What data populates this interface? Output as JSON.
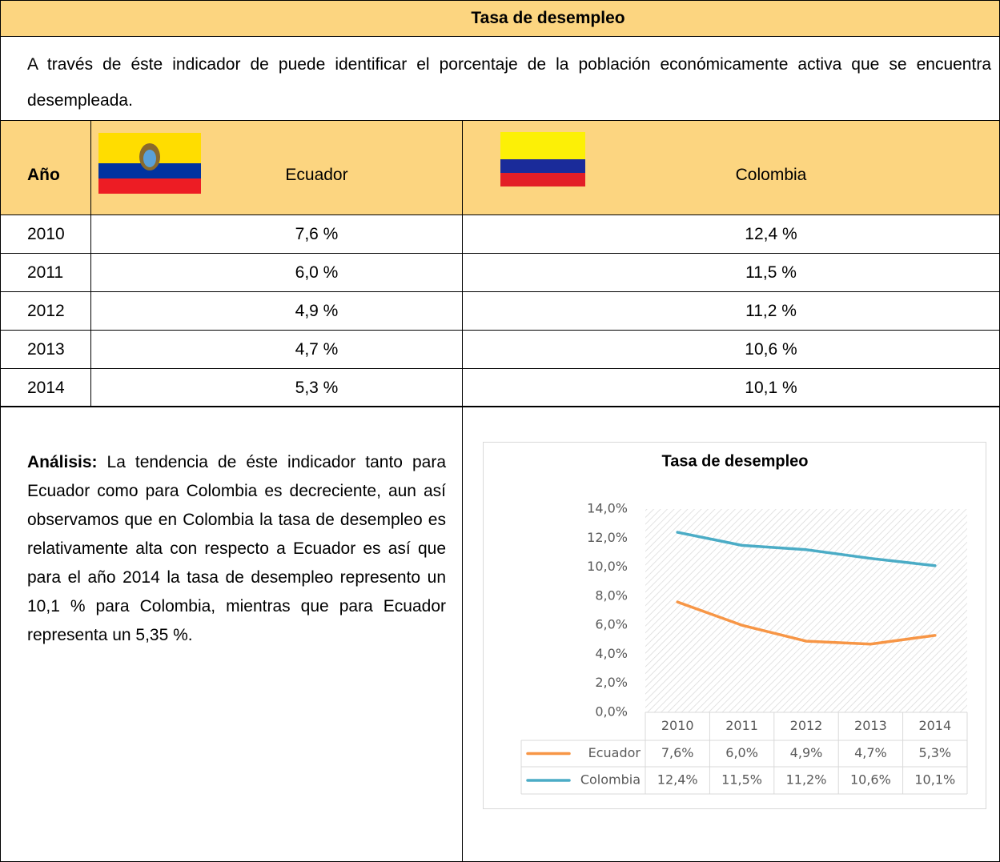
{
  "header": {
    "title": "Tasa de desempleo"
  },
  "description": "A través de éste indicador de puede identificar el porcentaje de la población económicamente activa que se encuentra desempleada.",
  "table": {
    "columns": [
      "Año",
      "Ecuador",
      "Colombia"
    ],
    "rows": [
      [
        "2010",
        "7,6 %",
        "12,4 %"
      ],
      [
        "2011",
        "6,0 %",
        "11,5 %"
      ],
      [
        "2012",
        "4,9 %",
        "11,2 %"
      ],
      [
        "2013",
        "4,7 %",
        "10,6 %"
      ],
      [
        "2014",
        "5,3 %",
        "10,1 %"
      ]
    ]
  },
  "analysis": {
    "label": "Análisis:",
    "text": "La tendencia de éste indicador tanto para Ecuador como para Colombia es decreciente, aun así observamos que en Colombia la tasa de desempleo es relativamente alta con respecto a Ecuador es así que para el año 2014 la tasa de desempleo represento un 10,1 % para Colombia, mientras que para Ecuador representa un 5,35 %."
  },
  "chart_data": {
    "type": "line",
    "title": "Tasa de desempleo",
    "categories": [
      "2010",
      "2011",
      "2012",
      "2013",
      "2014"
    ],
    "series": [
      {
        "name": "Ecuador",
        "color": "#f79646",
        "values": [
          7.6,
          6.0,
          4.9,
          4.7,
          5.3
        ],
        "value_labels": [
          "7,6%",
          "6,0%",
          "4,9%",
          "4,7%",
          "5,3%"
        ]
      },
      {
        "name": "Colombia",
        "color": "#4bacc6",
        "values": [
          12.4,
          11.5,
          11.2,
          10.6,
          10.1
        ],
        "value_labels": [
          "12,4%",
          "11,5%",
          "11,2%",
          "10,6%",
          "10,1%"
        ]
      }
    ],
    "ylim": [
      0,
      14
    ],
    "yticks": [
      {
        "value": 0,
        "label": "0,0%"
      },
      {
        "value": 2,
        "label": "2,0%"
      },
      {
        "value": 4,
        "label": "4,0%"
      },
      {
        "value": 6,
        "label": "6,0%"
      },
      {
        "value": 8,
        "label": "8,0%"
      },
      {
        "value": 10,
        "label": "10,0%"
      },
      {
        "value": 12,
        "label": "12,0%"
      },
      {
        "value": 14,
        "label": "14,0%"
      }
    ],
    "grid": false,
    "data_table": true
  }
}
